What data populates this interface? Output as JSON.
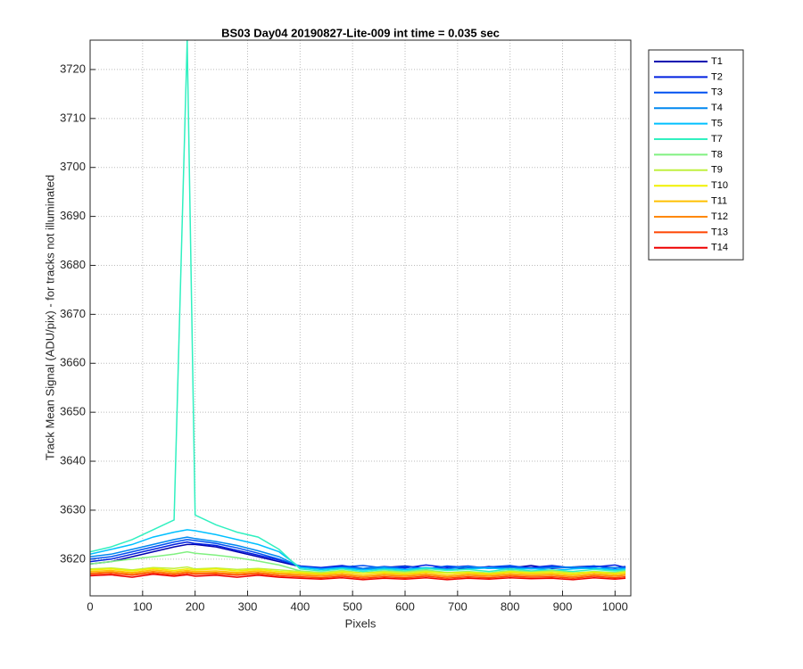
{
  "chart_data": {
    "type": "line",
    "title": "BS03 Day04 20190827-Lite-009 int time = 0.035 sec",
    "x_label": "Pixels",
    "y_label": "Track Mean Signal (ADU/pix) - for tracks not illuminated",
    "xlim": [
      0,
      1030
    ],
    "ylim": [
      3612.5,
      3726
    ],
    "xticks": [
      0,
      100,
      200,
      300,
      400,
      500,
      600,
      700,
      800,
      900,
      1000
    ],
    "yticks": [
      3620,
      3630,
      3640,
      3650,
      3660,
      3670,
      3680,
      3690,
      3700,
      3710,
      3720
    ],
    "grid": true,
    "legend": "outside right",
    "x": [
      0,
      40,
      80,
      120,
      160,
      185,
      200,
      240,
      280,
      320,
      360,
      400,
      440,
      480,
      520,
      560,
      600,
      640,
      680,
      720,
      760,
      800,
      840,
      880,
      920,
      960,
      1000,
      1020
    ],
    "series": [
      {
        "name": "T1",
        "color": "#0000b0",
        "values": [
          3619,
          3619.5,
          3620.5,
          3621.5,
          3622.5,
          3623,
          3623,
          3622.5,
          3621.5,
          3620.5,
          3619.5,
          3618.5,
          3618,
          3618.5,
          3618,
          3618.3,
          3618.6,
          3618.1,
          3618.4,
          3618,
          3618.5,
          3618.2,
          3618.7,
          3618.1,
          3618.4,
          3618.6,
          3618.2,
          3618.5
        ]
      },
      {
        "name": "T2",
        "color": "#0020e0",
        "values": [
          3619.5,
          3620,
          3621,
          3622,
          3623,
          3623.5,
          3623.2,
          3622.8,
          3621.8,
          3620.8,
          3619.8,
          3618.6,
          3618.3,
          3618.7,
          3618.1,
          3618.5,
          3618.2,
          3618.8,
          3618.3,
          3618.6,
          3618.1,
          3618.5,
          3618.3,
          3618.7,
          3618.2,
          3618.4,
          3618.8,
          3618.3
        ]
      },
      {
        "name": "T3",
        "color": "#0050f0",
        "values": [
          3620,
          3620.5,
          3621.5,
          3622.5,
          3623.5,
          3624,
          3623.8,
          3623.2,
          3622.3,
          3621.2,
          3620,
          3618.5,
          3618.1,
          3618.4,
          3618.7,
          3618.2,
          3618.5,
          3618,
          3618.6,
          3618.3,
          3618.4,
          3618.7,
          3618.1,
          3618.5,
          3618.3,
          3618.6,
          3618.1,
          3618.4
        ]
      },
      {
        "name": "T4",
        "color": "#0088f0",
        "values": [
          3620.5,
          3621,
          3622,
          3623,
          3624,
          3624.5,
          3624.2,
          3623.6,
          3622.8,
          3621.7,
          3620.5,
          3618.4,
          3618,
          3618.3,
          3618.1,
          3618.4,
          3617.9,
          3618.2,
          3618,
          3618.5,
          3618.1,
          3618.3,
          3618,
          3618.2,
          3618.4,
          3618,
          3618.3,
          3618.1
        ]
      },
      {
        "name": "T5",
        "color": "#00c0ff",
        "values": [
          3621,
          3622,
          3623,
          3624.5,
          3625.5,
          3626,
          3625.8,
          3625,
          3624,
          3623,
          3621.5,
          3618.3,
          3617.9,
          3618.2,
          3617.8,
          3618.1,
          3617.9,
          3618.3,
          3617.8,
          3618,
          3618.2,
          3617.9,
          3618.1,
          3617.7,
          3618,
          3618.2,
          3617.8,
          3618
        ]
      },
      {
        "name": "T7",
        "color": "#30f0c0",
        "values": [
          3621.5,
          3622.5,
          3624,
          3626,
          3628,
          3726,
          3629,
          3627,
          3625.5,
          3624.5,
          3622,
          3618,
          3617.6,
          3618,
          3617.5,
          3617.9,
          3617.6,
          3618.1,
          3617.7,
          3617.9,
          3617.5,
          3618,
          3617.6,
          3617.8,
          3617.5,
          3617.9,
          3617.6,
          3617.8
        ]
      },
      {
        "name": "T8",
        "color": "#80f080",
        "values": [
          3619,
          3619.5,
          3620,
          3620.5,
          3621,
          3621.5,
          3621.2,
          3620.8,
          3620.3,
          3619.6,
          3618.8,
          3617.6,
          3617.3,
          3617.7,
          3617.2,
          3617.6,
          3617.4,
          3617.8,
          3617.3,
          3617.5,
          3617.2,
          3617.7,
          3617.4,
          3617.6,
          3617.2,
          3617.5,
          3617.3,
          3617.6
        ]
      },
      {
        "name": "T9",
        "color": "#c0f040",
        "values": [
          3618,
          3618.2,
          3617.8,
          3618.3,
          3618.1,
          3618.4,
          3618,
          3618.2,
          3617.9,
          3618.1,
          3617.8,
          3617.5,
          3617.2,
          3617.6,
          3617.1,
          3617.5,
          3617.3,
          3617.6,
          3617.2,
          3617.4,
          3617.1,
          3617.5,
          3617.3,
          3617.6,
          3617.2,
          3617.4,
          3617.1,
          3617.5
        ]
      },
      {
        "name": "T10",
        "color": "#f0f000",
        "values": [
          3617.8,
          3618,
          3617.6,
          3618.1,
          3617.7,
          3618,
          3617.8,
          3618,
          3617.6,
          3617.9,
          3617.5,
          3617.3,
          3617,
          3617.4,
          3617.1,
          3617.3,
          3617,
          3617.4,
          3617.1,
          3617.3,
          3617,
          3617.4,
          3617.2,
          3617.3,
          3617,
          3617.4,
          3617.1,
          3617.3
        ]
      },
      {
        "name": "T11",
        "color": "#ffc000",
        "values": [
          3617.5,
          3617.7,
          3617.3,
          3617.8,
          3617.4,
          3617.7,
          3617.5,
          3617.6,
          3617.3,
          3617.6,
          3617.2,
          3617,
          3616.8,
          3617.1,
          3616.7,
          3617,
          3616.8,
          3617.1,
          3616.7,
          3617,
          3616.8,
          3617.1,
          3616.9,
          3617,
          3616.7,
          3617.1,
          3616.8,
          3617
        ]
      },
      {
        "name": "T12",
        "color": "#ff8800",
        "values": [
          3617.2,
          3617.4,
          3617,
          3617.5,
          3617.1,
          3617.4,
          3617.2,
          3617.3,
          3617,
          3617.3,
          3616.9,
          3616.7,
          3616.5,
          3616.8,
          3616.4,
          3616.7,
          3616.5,
          3616.8,
          3616.4,
          3616.7,
          3616.5,
          3616.8,
          3616.6,
          3616.7,
          3616.4,
          3616.8,
          3616.5,
          3616.7
        ]
      },
      {
        "name": "T13",
        "color": "#ff4400",
        "values": [
          3616.9,
          3617.1,
          3616.7,
          3617.2,
          3616.8,
          3617.1,
          3616.9,
          3617,
          3616.7,
          3617,
          3616.6,
          3616.4,
          3616.2,
          3616.5,
          3616.1,
          3616.4,
          3616.2,
          3616.5,
          3616.1,
          3616.4,
          3616.2,
          3616.5,
          3616.3,
          3616.4,
          3616.1,
          3616.5,
          3616.2,
          3616.4
        ]
      },
      {
        "name": "T14",
        "color": "#ee0000",
        "values": [
          3616.6,
          3616.8,
          3616.3,
          3616.9,
          3616.5,
          3616.8,
          3616.5,
          3616.7,
          3616.3,
          3616.7,
          3616.3,
          3616.1,
          3615.9,
          3616.2,
          3615.8,
          3616.1,
          3615.9,
          3616.2,
          3615.8,
          3616.1,
          3615.9,
          3616.2,
          3616,
          3616.1,
          3615.8,
          3616.2,
          3615.9,
          3616.1
        ]
      }
    ]
  }
}
